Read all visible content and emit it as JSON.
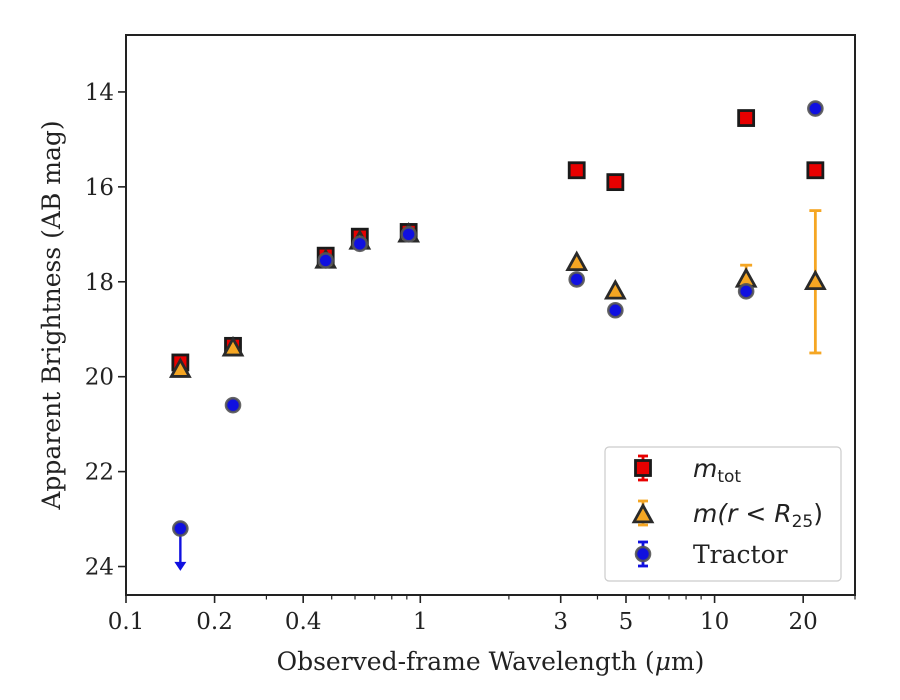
{
  "chart_data": {
    "type": "scatter",
    "xlabel_prefix": "Observed-frame Wavelength (",
    "xlabel_mu": "μ",
    "xlabel_suffix": "m)",
    "ylabel": "Apparent Brightness (AB mag)",
    "xscale": "log",
    "xlim": [
      0.1,
      30
    ],
    "ylim": [
      24.6,
      12.8
    ],
    "y_inverted": true,
    "grid": false,
    "legend_position": "lower-right",
    "x_ticks": [
      {
        "value": 0.1,
        "label": "0.1"
      },
      {
        "value": 0.2,
        "label": "0.2"
      },
      {
        "value": 0.4,
        "label": "0.4"
      },
      {
        "value": 1,
        "label": "1"
      },
      {
        "value": 3,
        "label": "3"
      },
      {
        "value": 5,
        "label": "5"
      },
      {
        "value": 10,
        "label": "10"
      },
      {
        "value": 20,
        "label": "20"
      }
    ],
    "x_minor_ticks": [
      0.3,
      0.5,
      0.6,
      0.7,
      0.8,
      0.9,
      2,
      4,
      6,
      7,
      8,
      9,
      30
    ],
    "y_ticks": [
      {
        "value": 14,
        "label": "14"
      },
      {
        "value": 16,
        "label": "16"
      },
      {
        "value": 18,
        "label": "18"
      },
      {
        "value": 20,
        "label": "20"
      },
      {
        "value": 22,
        "label": "22"
      },
      {
        "value": 24,
        "label": "24"
      }
    ],
    "series": [
      {
        "name": "m_tot",
        "legend_main": "m",
        "legend_sub": "tot",
        "marker": "square",
        "color": "#e80000",
        "edge_color": "#1a1a1a",
        "points": [
          {
            "x": 0.153,
            "y": 19.7,
            "err": 0.05
          },
          {
            "x": 0.231,
            "y": 19.35,
            "err": 0.05
          },
          {
            "x": 0.477,
            "y": 17.45,
            "err": 0.05
          },
          {
            "x": 0.623,
            "y": 17.05,
            "err": 0.05
          },
          {
            "x": 0.913,
            "y": 16.95,
            "err": 0.05
          },
          {
            "x": 3.4,
            "y": 15.65,
            "err": 0.05
          },
          {
            "x": 4.6,
            "y": 15.9,
            "err": 0.05
          },
          {
            "x": 12.8,
            "y": 14.55,
            "err": 0.05
          },
          {
            "x": 22.0,
            "y": 15.65,
            "err": 0.05
          }
        ]
      },
      {
        "name": "m(r<R25)",
        "legend_main": "m",
        "legend_inner": "(r < R",
        "legend_sub": "25",
        "legend_close": ")",
        "marker": "triangle",
        "color": "#f5a623",
        "edge_color": "#2a2a2a",
        "points": [
          {
            "x": 0.153,
            "y": 19.85,
            "err": 0.05
          },
          {
            "x": 0.231,
            "y": 19.4,
            "err": 0.05
          },
          {
            "x": 0.477,
            "y": 17.55,
            "err": 0.05
          },
          {
            "x": 0.623,
            "y": 17.15,
            "err": 0.05
          },
          {
            "x": 0.913,
            "y": 17.0,
            "err": 0.05
          },
          {
            "x": 3.4,
            "y": 17.6,
            "err": 0.05
          },
          {
            "x": 4.6,
            "y": 18.2,
            "err": 0.05
          },
          {
            "x": 12.8,
            "y": 17.95,
            "err": 0.3
          },
          {
            "x": 22.0,
            "y": 18.0,
            "err": 1.5
          }
        ]
      },
      {
        "name": "Tractor",
        "legend_main": "Tractor",
        "marker": "circle",
        "color": "#1010e0",
        "edge_color": "#555555",
        "points": [
          {
            "x": 0.153,
            "y": 23.2,
            "err": 0.0,
            "upper_limit": true
          },
          {
            "x": 0.231,
            "y": 20.6,
            "err": 0.05
          },
          {
            "x": 0.477,
            "y": 17.55,
            "err": 0.05
          },
          {
            "x": 0.623,
            "y": 17.2,
            "err": 0.05
          },
          {
            "x": 0.913,
            "y": 17.0,
            "err": 0.05
          },
          {
            "x": 3.4,
            "y": 17.95,
            "err": 0.05
          },
          {
            "x": 4.6,
            "y": 18.6,
            "err": 0.05
          },
          {
            "x": 12.8,
            "y": 18.2,
            "err": 0.05
          },
          {
            "x": 22.0,
            "y": 14.35,
            "err": 0.05
          }
        ]
      }
    ]
  }
}
